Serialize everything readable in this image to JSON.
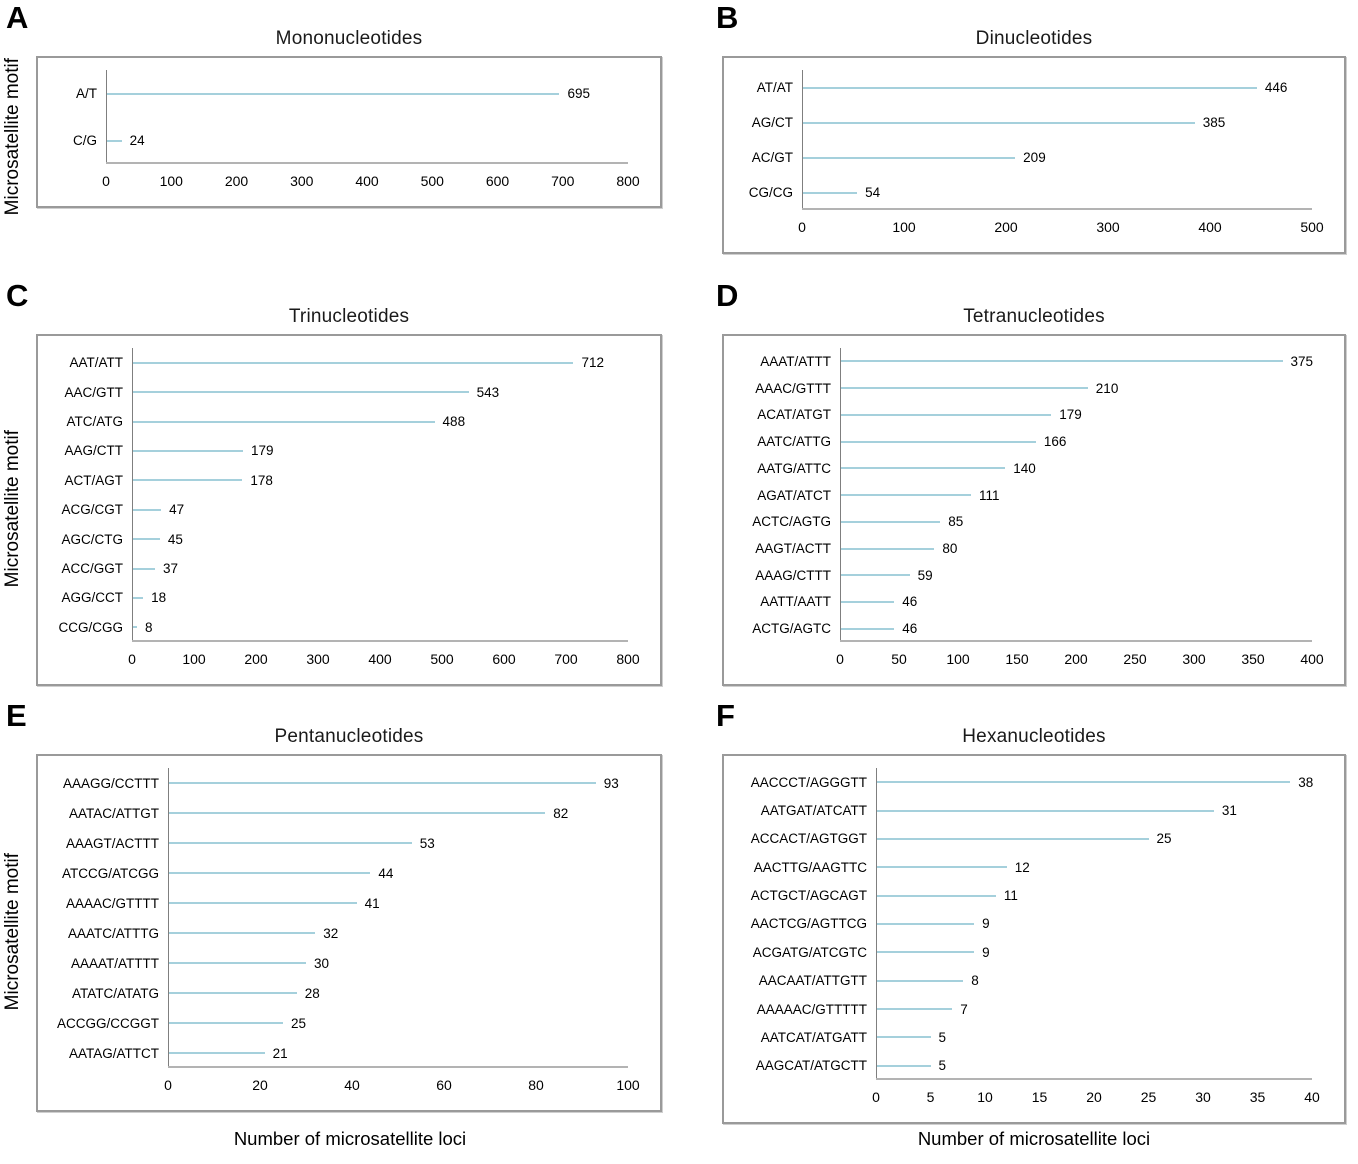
{
  "figure": {
    "y_axis_label": "Microsatellite motif",
    "x_axis_label_left": "Number of microsatellite loci",
    "x_axis_label_right": "Number of microsatellite loci",
    "bar_color": "#4aa2b8",
    "bar_edge_color": "#a5d0dc",
    "box_border_color": "#9a9a9a"
  },
  "chart_data": [
    {
      "panel": "A",
      "type": "bar",
      "orientation": "horizontal",
      "title": "Mononucleotides",
      "ylabel": "Microsatellite motif",
      "xlabel": "Number of microsatellite loci",
      "categories": [
        "A/T",
        "C/G"
      ],
      "values": [
        695,
        24
      ],
      "xlim": [
        0,
        800
      ],
      "xticks": [
        0,
        100,
        200,
        300,
        400,
        500,
        600,
        700,
        800
      ],
      "grid": false,
      "legend": false
    },
    {
      "panel": "B",
      "type": "bar",
      "orientation": "horizontal",
      "title": "Dinucleotides",
      "ylabel": "Microsatellite motif",
      "xlabel": "Number of microsatellite loci",
      "categories": [
        "AT/AT",
        "AG/CT",
        "AC/GT",
        "CG/CG"
      ],
      "values": [
        446,
        385,
        209,
        54
      ],
      "xlim": [
        0,
        500
      ],
      "xticks": [
        0,
        100,
        200,
        300,
        400,
        500
      ],
      "grid": false,
      "legend": false
    },
    {
      "panel": "C",
      "type": "bar",
      "orientation": "horizontal",
      "title": "Trinucleotides",
      "ylabel": "Microsatellite motif",
      "xlabel": "Number of microsatellite loci",
      "categories": [
        "AAT/ATT",
        "AAC/GTT",
        "ATC/ATG",
        "AAG/CTT",
        "ACT/AGT",
        "ACG/CGT",
        "AGC/CTG",
        "ACC/GGT",
        "AGG/CCT",
        "CCG/CGG"
      ],
      "values": [
        712,
        543,
        488,
        179,
        178,
        47,
        45,
        37,
        18,
        8
      ],
      "xlim": [
        0,
        800
      ],
      "xticks": [
        0,
        100,
        200,
        300,
        400,
        500,
        600,
        700,
        800
      ],
      "grid": false,
      "legend": false
    },
    {
      "panel": "D",
      "type": "bar",
      "orientation": "horizontal",
      "title": "Tetranucleotides",
      "ylabel": "Microsatellite motif",
      "xlabel": "Number of microsatellite loci",
      "categories": [
        "AAAT/ATTT",
        "AAAC/GTTT",
        "ACAT/ATGT",
        "AATC/ATTG",
        "AATG/ATTC",
        "AGAT/ATCT",
        "ACTC/AGTG",
        "AAGT/ACTT",
        "AAAG/CTTT",
        "AATT/AATT",
        "ACTG/AGTC"
      ],
      "values": [
        375,
        210,
        179,
        166,
        140,
        111,
        85,
        80,
        59,
        46,
        46
      ],
      "xlim": [
        0,
        400
      ],
      "xticks": [
        0,
        50,
        100,
        150,
        200,
        250,
        300,
        350,
        400
      ],
      "grid": false,
      "legend": false
    },
    {
      "panel": "E",
      "type": "bar",
      "orientation": "horizontal",
      "title": "Pentanucleotides",
      "ylabel": "Microsatellite motif",
      "xlabel": "Number of microsatellite loci",
      "categories": [
        "AAAGG/CCTTT",
        "AATAC/ATTGT",
        "AAAGT/ACTTT",
        "ATCCG/ATCGG",
        "AAAAC/GTTTT",
        "AAATC/ATTTG",
        "AAAAT/ATTTT",
        "ATATC/ATATG",
        "ACCGG/CCGGT",
        "AATAG/ATTCT"
      ],
      "values": [
        93,
        82,
        53,
        44,
        41,
        32,
        30,
        28,
        25,
        21
      ],
      "xlim": [
        0,
        100
      ],
      "xticks": [
        0,
        20,
        40,
        60,
        80,
        100
      ],
      "grid": false,
      "legend": false
    },
    {
      "panel": "F",
      "type": "bar",
      "orientation": "horizontal",
      "title": "Hexanucleotides",
      "ylabel": "Microsatellite motif",
      "xlabel": "Number of microsatellite loci",
      "categories": [
        "AACCCT/AGGGTT",
        "AATGAT/ATCATT",
        "ACCACT/AGTGGT",
        "AACTTG/AAGTTC",
        "ACTGCT/AGCAGT",
        "AACTCG/AGTTCG",
        "ACGATG/ATCGTC",
        "AACAAT/ATTGTT",
        "AAAAAC/GTTTTT",
        "AATCAT/ATGATT",
        "AAGCAT/ATGCTT"
      ],
      "values": [
        38,
        31,
        25,
        12,
        11,
        9,
        9,
        8,
        7,
        5,
        5
      ],
      "xlim": [
        0,
        40
      ],
      "xticks": [
        0,
        5,
        10,
        15,
        20,
        25,
        30,
        35,
        40
      ],
      "grid": false,
      "legend": false
    }
  ]
}
